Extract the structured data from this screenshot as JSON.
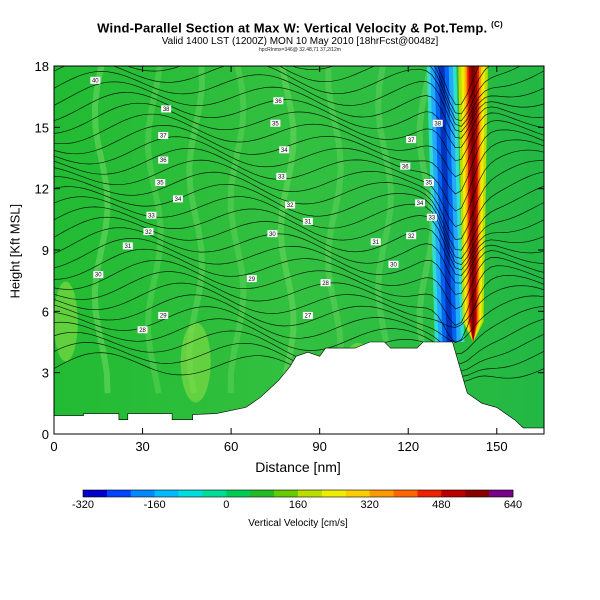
{
  "header": {
    "title": "Wind-Parallel Section at Max W: Vertical Velocity & Pot.Temp.",
    "title_mark": "(C)",
    "subtitle": "Valid 1400 LST (1200Z) MON 10 May 2010 [18hrFcst@0048z]",
    "run_info": "hpcRInmx=346@ 32.48,71 37,2/12m"
  },
  "chart_data": {
    "type": "heatmap",
    "title": "Wind-Parallel Section at Max W: Vertical Velocity & Pot.Temp.",
    "xlabel": "Distance [nm]",
    "ylabel": "Height [Kft MSL]",
    "xlim": [
      0,
      166
    ],
    "ylim": [
      0,
      18
    ],
    "xticks": [
      0,
      30,
      60,
      90,
      120,
      150
    ],
    "yticks": [
      0,
      3,
      6,
      9,
      12,
      15,
      18
    ],
    "colorbar": {
      "label": "Vertical Velocity [cm/s]",
      "ticks": [
        -320,
        -160,
        0,
        160,
        320,
        480,
        640
      ],
      "min": -320,
      "max": 640,
      "colors": [
        "#0000cc",
        "#0044ff",
        "#0088ff",
        "#00bbff",
        "#00dddd",
        "#00dd99",
        "#00cc55",
        "#22bb22",
        "#66cc00",
        "#bbdd00",
        "#eeee00",
        "#ffcc00",
        "#ff9900",
        "#ff6600",
        "#ee2200",
        "#bb0000",
        "#880000",
        "#770088"
      ]
    },
    "terrain": [
      [
        0,
        0.9
      ],
      [
        10,
        0.9
      ],
      [
        10,
        1.0
      ],
      [
        22,
        1.0
      ],
      [
        22,
        0.7
      ],
      [
        25,
        0.7
      ],
      [
        25,
        1.0
      ],
      [
        40,
        1.0
      ],
      [
        40,
        0.7
      ],
      [
        47,
        0.7
      ],
      [
        47,
        0.95
      ],
      [
        55,
        1.0
      ],
      [
        65,
        1.3
      ],
      [
        70,
        1.8
      ],
      [
        76,
        2.6
      ],
      [
        80,
        3.3
      ],
      [
        82,
        3.8
      ],
      [
        86,
        4.0
      ],
      [
        90,
        3.8
      ],
      [
        92,
        4.2
      ],
      [
        102,
        4.2
      ],
      [
        107,
        4.5
      ],
      [
        112,
        4.5
      ],
      [
        114,
        4.2
      ],
      [
        123,
        4.2
      ],
      [
        125,
        4.5
      ],
      [
        135,
        4.5
      ],
      [
        137,
        3.5
      ],
      [
        140,
        2.0
      ],
      [
        145,
        1.5
      ],
      [
        150,
        1.3
      ],
      [
        153,
        1.0
      ],
      [
        156,
        0.7
      ],
      [
        159,
        0.3
      ],
      [
        166,
        0.3
      ]
    ],
    "vertical_velocity_features": [
      {
        "name": "updraft core",
        "x_center": 142,
        "half_width": 2.5,
        "z_min": 4.5,
        "z_max": 18,
        "w_max": 600
      },
      {
        "name": "downdraft",
        "x_center": 132,
        "half_width": 3,
        "z_min": 4.5,
        "z_max": 18,
        "w_min": -300
      }
    ],
    "theta_contour_labels": [
      {
        "x": 14,
        "z": 17.3,
        "text": "40"
      },
      {
        "x": 38,
        "z": 15.9,
        "text": "38"
      },
      {
        "x": 37,
        "z": 14.6,
        "text": "37"
      },
      {
        "x": 37,
        "z": 13.4,
        "text": "36"
      },
      {
        "x": 36,
        "z": 12.3,
        "text": "35"
      },
      {
        "x": 42,
        "z": 11.5,
        "text": "34"
      },
      {
        "x": 33,
        "z": 10.7,
        "text": "33"
      },
      {
        "x": 32,
        "z": 9.9,
        "text": "32"
      },
      {
        "x": 25,
        "z": 9.2,
        "text": "31"
      },
      {
        "x": 15,
        "z": 7.8,
        "text": "30"
      },
      {
        "x": 37,
        "z": 5.8,
        "text": "29"
      },
      {
        "x": 30,
        "z": 5.1,
        "text": "28"
      },
      {
        "x": 76,
        "z": 16.3,
        "text": "36"
      },
      {
        "x": 75,
        "z": 15.2,
        "text": "35"
      },
      {
        "x": 78,
        "z": 13.9,
        "text": "34"
      },
      {
        "x": 77,
        "z": 12.6,
        "text": "33"
      },
      {
        "x": 80,
        "z": 11.2,
        "text": "32"
      },
      {
        "x": 86,
        "z": 10.4,
        "text": "31"
      },
      {
        "x": 74,
        "z": 9.8,
        "text": "30"
      },
      {
        "x": 67,
        "z": 7.6,
        "text": "29"
      },
      {
        "x": 92,
        "z": 7.4,
        "text": "28"
      },
      {
        "x": 86,
        "z": 5.8,
        "text": "27"
      },
      {
        "x": 130,
        "z": 15.2,
        "text": "38"
      },
      {
        "x": 121,
        "z": 14.4,
        "text": "37"
      },
      {
        "x": 119,
        "z": 13.1,
        "text": "36"
      },
      {
        "x": 127,
        "z": 12.3,
        "text": "35"
      },
      {
        "x": 124,
        "z": 11.3,
        "text": "34"
      },
      {
        "x": 128,
        "z": 10.6,
        "text": "33"
      },
      {
        "x": 121,
        "z": 9.7,
        "text": "32"
      },
      {
        "x": 109,
        "z": 9.4,
        "text": "31"
      },
      {
        "x": 115,
        "z": 8.3,
        "text": "30"
      }
    ]
  }
}
